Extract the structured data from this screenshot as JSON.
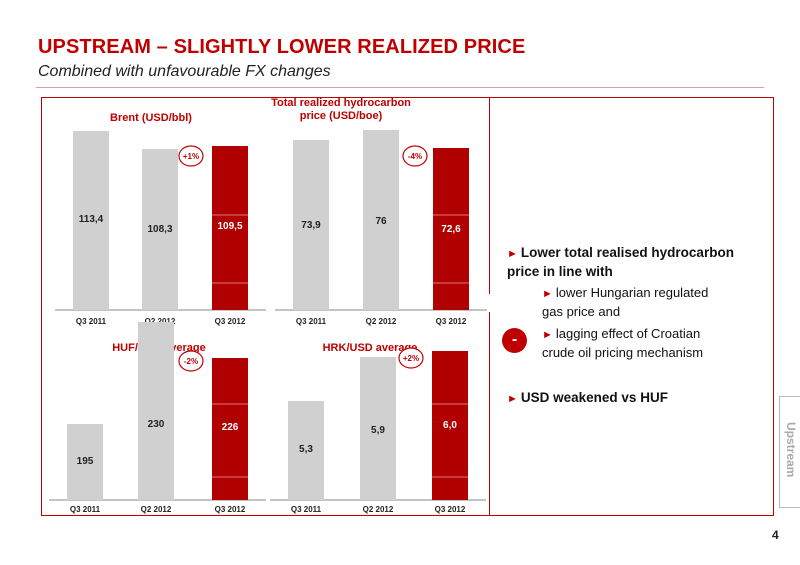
{
  "header": {
    "title": "UPSTREAM – SLIGHTLY LOWER REALIZED PRICE",
    "subtitle": "Combined with unfavourable FX changes"
  },
  "side_tab": {
    "label": "Upstream"
  },
  "page_number": "4",
  "colors": {
    "accent": "#c00000",
    "gray_bar": "#d0d0d0",
    "highlight_bar": "#b00000"
  },
  "bullets": {
    "main1_line1": "Lower total realised hydrocarbon",
    "main1_line2": "price in line with",
    "sub1_line1": "lower Hungarian regulated",
    "sub1_line2": "gas price and",
    "sub2_line1": "lagging effect of Croatian",
    "sub2_line2": "crude oil pricing mechanism",
    "main2": "USD weakened vs HUF",
    "minus_badge": "-"
  },
  "chart_data": [
    {
      "type": "bar",
      "title": "Brent (USD/bbl)",
      "categories": [
        "Q3 2011",
        "Q2 2012",
        "Q3 2012"
      ],
      "values": [
        113.4,
        108.3,
        109.5
      ],
      "labels": [
        "113,4",
        "108,3",
        "109,5"
      ],
      "change_badge": "+1%",
      "ylim": [
        0,
        120
      ]
    },
    {
      "type": "bar",
      "title_line1": "Total realized hydrocarbon",
      "title_line2": "price (USD/boe)",
      "categories": [
        "Q3 2011",
        "Q2 2012",
        "Q3 2012"
      ],
      "values": [
        73.9,
        76,
        72.6
      ],
      "labels": [
        "73,9",
        "76",
        "72,6"
      ],
      "change_badge": "-4%",
      "ylim": [
        0,
        80
      ]
    },
    {
      "type": "bar",
      "title": "HUF/USD average",
      "categories": [
        "Q3 2011",
        "Q2 2012",
        "Q3 2012"
      ],
      "values": [
        195,
        230,
        226
      ],
      "labels": [
        "195",
        "230",
        "226"
      ],
      "change_badge": "-2%"
    },
    {
      "type": "bar",
      "title": "HRK/USD average",
      "categories": [
        "Q3 2011",
        "Q2 2012",
        "Q3 2012"
      ],
      "values": [
        5.3,
        5.9,
        6.0
      ],
      "labels": [
        "5,3",
        "5,9",
        "6,0"
      ],
      "change_badge": "+2%"
    }
  ]
}
